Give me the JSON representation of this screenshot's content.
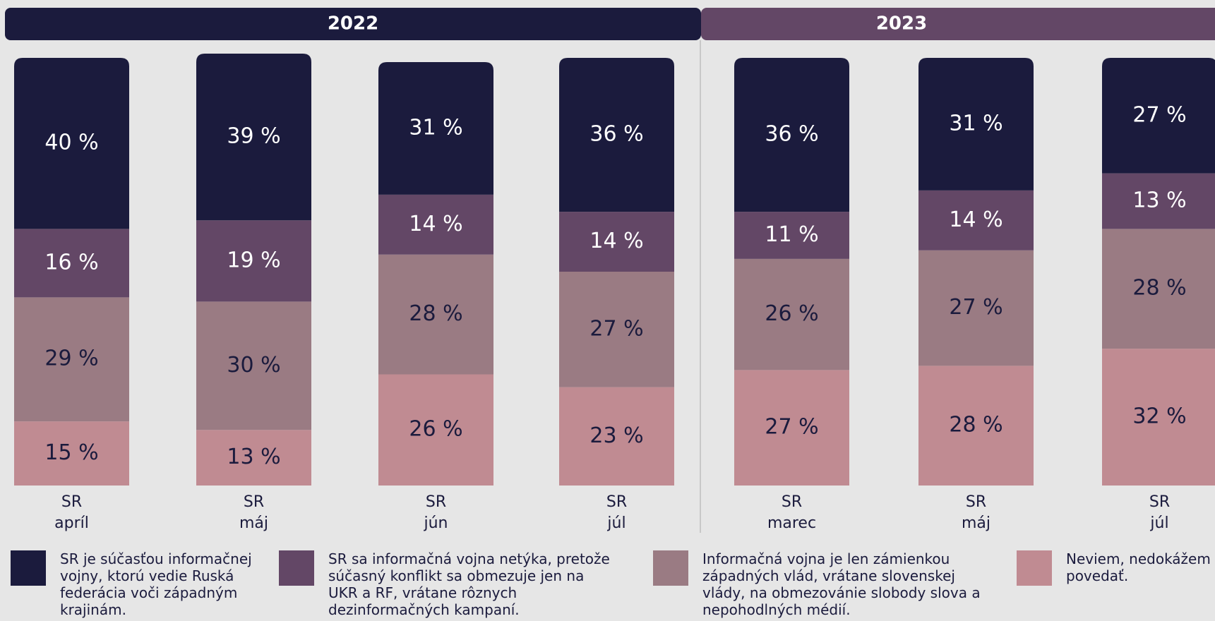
{
  "chart_data": {
    "type": "stacked_bar",
    "groups": [
      {
        "label": "2022",
        "categories": [
          [
            "SR",
            "apríl"
          ],
          [
            "SR",
            "máj"
          ],
          [
            "SR",
            "jún"
          ],
          [
            "SR",
            "júl"
          ]
        ]
      },
      {
        "label": "2023",
        "categories": [
          [
            "SR",
            "marec"
          ],
          [
            "SR",
            "máj"
          ],
          [
            "SR",
            "júl"
          ]
        ]
      }
    ],
    "ylim": [
      0,
      100
    ],
    "series": [
      {
        "name": "SR je súčasťou informačnej vojny, ktorú vedie Ruská federácia voči západným krajinám.",
        "color": "#1b1b3d",
        "values": [
          40,
          39,
          31,
          36,
          36,
          31,
          27
        ],
        "value_labels": [
          "40 %",
          "39 %",
          "31 %",
          "36 %",
          "36 %",
          "31 %",
          "27 %"
        ]
      },
      {
        "name": "SR sa informačná vojna netýka, pretože súčasný konflikt sa obmezuje jen na UKR a RF, vrátane rôznych dezinformačných kampaní.",
        "color": "#634766",
        "values": [
          16,
          19,
          14,
          14,
          11,
          14,
          13
        ],
        "value_labels": [
          "16 %",
          "19 %",
          "14 %",
          "14 %",
          "11 %",
          "14 %",
          "13 %"
        ]
      },
      {
        "name": "Informačná vojna je len zámienkou západných vlád, vrátane slovenskej vlády, na obmezovánie slobody slova a nepohodlných médií.",
        "color": "#9a7b83",
        "values": [
          29,
          30,
          28,
          27,
          26,
          27,
          28
        ],
        "value_labels": [
          "29 %",
          "30 %",
          "28 %",
          "27 %",
          "26 %",
          "27 %",
          "28 %"
        ]
      },
      {
        "name": "Neviem, nedokážem povedať.",
        "color": "#c08b92",
        "values": [
          15,
          13,
          26,
          23,
          27,
          28,
          32
        ],
        "value_labels": [
          "15 %",
          "13 %",
          "26 %",
          "23 %",
          "27 %",
          "28 %",
          "32 %"
        ]
      }
    ]
  }
}
